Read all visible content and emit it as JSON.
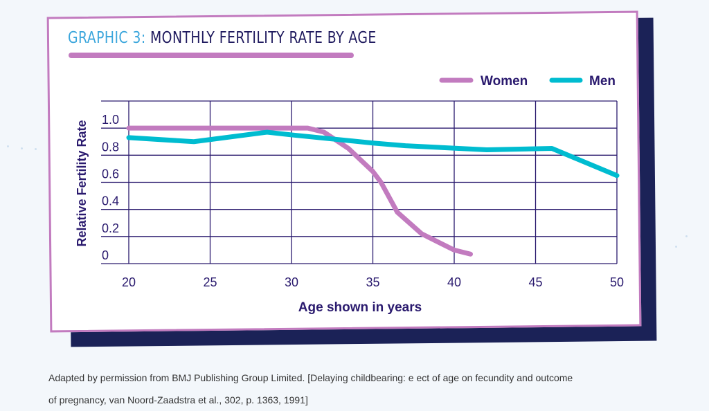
{
  "title_prefix": "GRAPHIC 3:",
  "title_main": "MONTHLY FERTILITY RATE BY AGE",
  "caption_line1": "Adapted by permission from BMJ Publishing Group Limited. [Delaying childbearing: e ect of age on fecundity and outcome",
  "caption_line2": "of pregnancy, van Noord-Zaadstra et al., 302, p. 1363, 1991]",
  "colors": {
    "women": "#c27bbf",
    "men": "#00bcd0",
    "grid": "#2a1a6e",
    "border": "#c27bbf",
    "shadow": "#1b2257"
  },
  "chart_data": {
    "type": "line",
    "xlabel": "Age shown in years",
    "ylabel": "Relative Fertility Rate",
    "xlim": [
      20,
      50
    ],
    "ylim": [
      0,
      1.2
    ],
    "xticks": [
      "20",
      "25",
      "30",
      "35",
      "40",
      "45",
      "50"
    ],
    "yticks": [
      "1.0",
      "0.8",
      "0.6",
      "0.4",
      "0.2",
      "0"
    ],
    "grid": true,
    "legend_placement": "top-right",
    "series": [
      {
        "name": "Women",
        "x": [
          20,
          31,
          32,
          33.5,
          35,
          35.5,
          36.5,
          38,
          40,
          41
        ],
        "values": [
          1.0,
          1.0,
          0.97,
          0.85,
          0.68,
          0.6,
          0.38,
          0.22,
          0.1,
          0.07
        ]
      },
      {
        "name": "Men",
        "x": [
          20,
          24,
          28.5,
          30,
          35,
          37,
          42,
          46,
          50
        ],
        "values": [
          0.93,
          0.9,
          0.97,
          0.95,
          0.89,
          0.87,
          0.84,
          0.85,
          0.65
        ]
      }
    ]
  }
}
